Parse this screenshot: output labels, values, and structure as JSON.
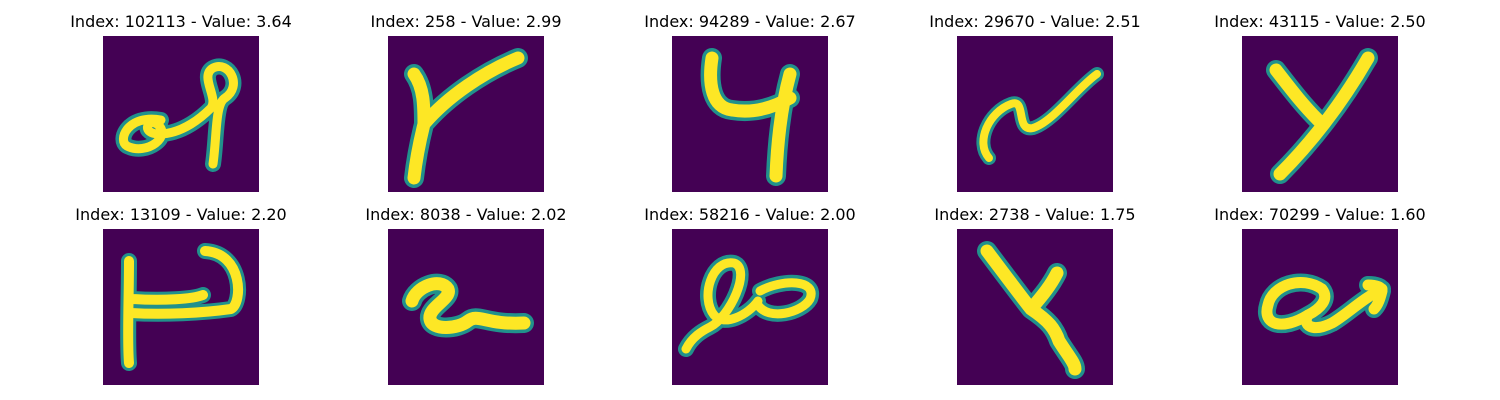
{
  "figure": {
    "background_color": "#440154",
    "stroke_color": "#fde725",
    "edge_color": "#21918c",
    "panels": [
      {
        "title": "Index: 102113 - Value: 3.64",
        "glyph": "loop-a"
      },
      {
        "title": "Index: 258 - Value: 2.99",
        "glyph": "y"
      },
      {
        "title": "Index: 94289 - Value: 2.67",
        "glyph": "four"
      },
      {
        "title": "Index: 29670 - Value: 2.51",
        "glyph": "squiggle"
      },
      {
        "title": "Index: 43115 - Value: 2.50",
        "glyph": "y2"
      },
      {
        "title": "Index: 13109 - Value: 2.20",
        "glyph": "box"
      },
      {
        "title": "Index: 8038 - Value: 2.02",
        "glyph": "two-q"
      },
      {
        "title": "Index: 58216 - Value: 2.00",
        "glyph": "loops"
      },
      {
        "title": "Index: 2738 - Value: 1.75",
        "glyph": "z-four"
      },
      {
        "title": "Index: 70299 - Value: 1.60",
        "glyph": "a-arrow"
      }
    ]
  }
}
